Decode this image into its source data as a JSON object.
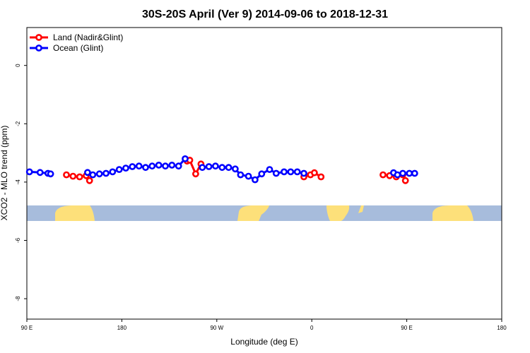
{
  "chart_data": {
    "type": "line",
    "title": "30S-20S April (Ver 9)   2014-09-06 to 2018-12-31",
    "xlabel": "Longitude (deg E)",
    "ylabel": "XCO2 - MLO trend (ppm)",
    "xlim": [
      90,
      450
    ],
    "ylim": [
      -8.7,
      1.3
    ],
    "x_tick_values": [
      90,
      180,
      270,
      360,
      450,
      540
    ],
    "x_tick_labels": [
      "90 E",
      "180",
      "90 W",
      "0",
      "90 E",
      "180"
    ],
    "xticks": [
      90,
      180,
      270,
      360,
      450,
      540
    ],
    "yticks": [
      0,
      -2,
      -4,
      -6,
      -8
    ],
    "ytick_labels": [
      "0",
      "-2",
      "-4",
      "-6",
      "-8"
    ],
    "legend_position": "top-left",
    "grid": false,
    "series": [
      {
        "name": "Land (Nadir&Glint)",
        "color": "#ff0000",
        "segments": [
          [
            [
              120,
              -3.75
            ],
            [
              125,
              -3.8
            ],
            [
              130,
              -3.82
            ],
            [
              135,
              -3.78
            ],
            [
              137.5,
              -3.95
            ]
          ],
          [
            [
              211.5,
              -3.28
            ],
            [
              213.5,
              -3.25
            ],
            [
              218,
              -3.72
            ],
            [
              222,
              -3.38
            ]
          ],
          [
            [
              300,
              -3.82
            ],
            [
              305,
              -3.75
            ],
            [
              308,
              -3.68
            ],
            [
              313,
              -3.82
            ]
          ],
          [
            [
              360,
              -3.75
            ],
            [
              365,
              -3.78
            ],
            [
              370,
              -3.82
            ],
            [
              375,
              -3.75
            ],
            [
              377,
              -3.95
            ]
          ]
        ]
      },
      {
        "name": "Ocean (Glint)",
        "color": "#0000ff",
        "segments": [
          [
            [
              92,
              -3.65
            ],
            [
              100,
              -3.67
            ],
            [
              106,
              -3.7
            ],
            [
              108,
              -3.72
            ]
          ],
          [
            [
              136,
              -3.67
            ],
            [
              140,
              -3.75
            ],
            [
              145,
              -3.72
            ],
            [
              150,
              -3.7
            ],
            [
              155,
              -3.65
            ],
            [
              160,
              -3.57
            ],
            [
              165,
              -3.52
            ],
            [
              170,
              -3.47
            ],
            [
              175,
              -3.45
            ],
            [
              180,
              -3.5
            ],
            [
              185,
              -3.45
            ],
            [
              190,
              -3.42
            ],
            [
              195,
              -3.45
            ],
            [
              200,
              -3.42
            ],
            [
              205,
              -3.45
            ],
            [
              210,
              -3.2
            ]
          ],
          [
            [
              223,
              -3.5
            ],
            [
              228,
              -3.47
            ],
            [
              233,
              -3.45
            ],
            [
              238,
              -3.5
            ],
            [
              243,
              -3.5
            ],
            [
              248,
              -3.55
            ],
            [
              252,
              -3.75
            ],
            [
              258,
              -3.8
            ],
            [
              263,
              -3.92
            ],
            [
              268,
              -3.72
            ],
            [
              274,
              -3.57
            ],
            [
              279,
              -3.7
            ],
            [
              285,
              -3.65
            ],
            [
              290,
              -3.65
            ],
            [
              295,
              -3.65
            ],
            [
              300,
              -3.7
            ]
          ],
          [
            [
              368,
              -3.68
            ],
            [
              371,
              -3.75
            ],
            [
              375,
              -3.7
            ],
            [
              380,
              -3.7
            ],
            [
              384,
              -3.7
            ]
          ]
        ]
      }
    ]
  }
}
